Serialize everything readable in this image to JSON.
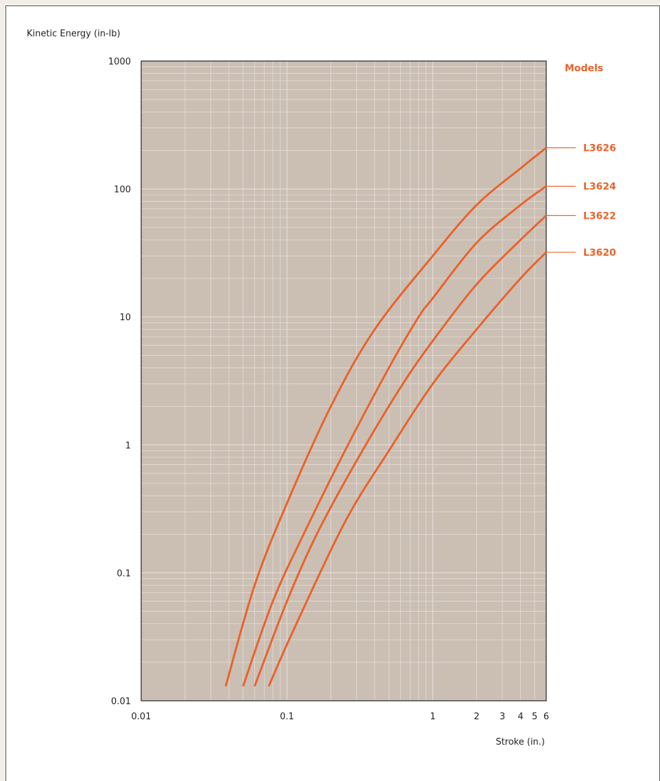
{
  "chart_data": {
    "type": "line",
    "ylabel": "Kinetic Energy (in-lb)",
    "xlabel": "Stroke (in.)",
    "legend_title": "Models",
    "x_scale": "log",
    "y_scale": "log",
    "xlim": [
      0.01,
      6
    ],
    "ylim": [
      0.01,
      1000
    ],
    "x_tick_labels": [
      {
        "value": 0.01,
        "label": "0.01"
      },
      {
        "value": 0.1,
        "label": "0.1"
      },
      {
        "value": 1,
        "label": "1"
      },
      {
        "value": 2,
        "label": "2"
      },
      {
        "value": 3,
        "label": "3"
      },
      {
        "value": 4,
        "label": "4"
      },
      {
        "value": 5,
        "label": "5"
      },
      {
        "value": 6,
        "label": "6"
      }
    ],
    "y_tick_labels": [
      {
        "value": 0.01,
        "label": "0.01"
      },
      {
        "value": 0.1,
        "label": "0.1"
      },
      {
        "value": 1,
        "label": "1"
      },
      {
        "value": 10,
        "label": "10"
      },
      {
        "value": 100,
        "label": "100"
      },
      {
        "value": 1000,
        "label": "1000"
      }
    ],
    "grid": true,
    "legend_position": "right",
    "colors": {
      "background": "#cbbfb4",
      "grid": "#e4ddd6",
      "line": "#e8632c"
    },
    "series": [
      {
        "name": "L3626",
        "x": [
          0.038,
          0.06,
          0.1,
          0.2,
          0.4,
          1,
          2,
          4,
          6
        ],
        "y": [
          0.013,
          0.08,
          0.35,
          2.0,
          8.0,
          30,
          75,
          145,
          210
        ]
      },
      {
        "name": "L3624",
        "x": [
          0.05,
          0.08,
          0.13,
          0.25,
          0.5,
          0.8,
          1,
          2,
          4,
          6
        ],
        "y": [
          0.013,
          0.06,
          0.2,
          0.9,
          4.0,
          10,
          14,
          38,
          75,
          105
        ]
      },
      {
        "name": "L3622",
        "x": [
          0.06,
          0.1,
          0.16,
          0.3,
          0.6,
          1,
          2,
          4,
          6
        ],
        "y": [
          0.013,
          0.06,
          0.2,
          0.75,
          2.8,
          6.5,
          18,
          40,
          62
        ]
      },
      {
        "name": "L3620",
        "x": [
          0.075,
          0.11,
          0.25,
          0.5,
          1,
          2,
          4,
          6
        ],
        "y": [
          0.013,
          0.035,
          0.25,
          0.9,
          3.0,
          8,
          20,
          32
        ]
      }
    ]
  }
}
